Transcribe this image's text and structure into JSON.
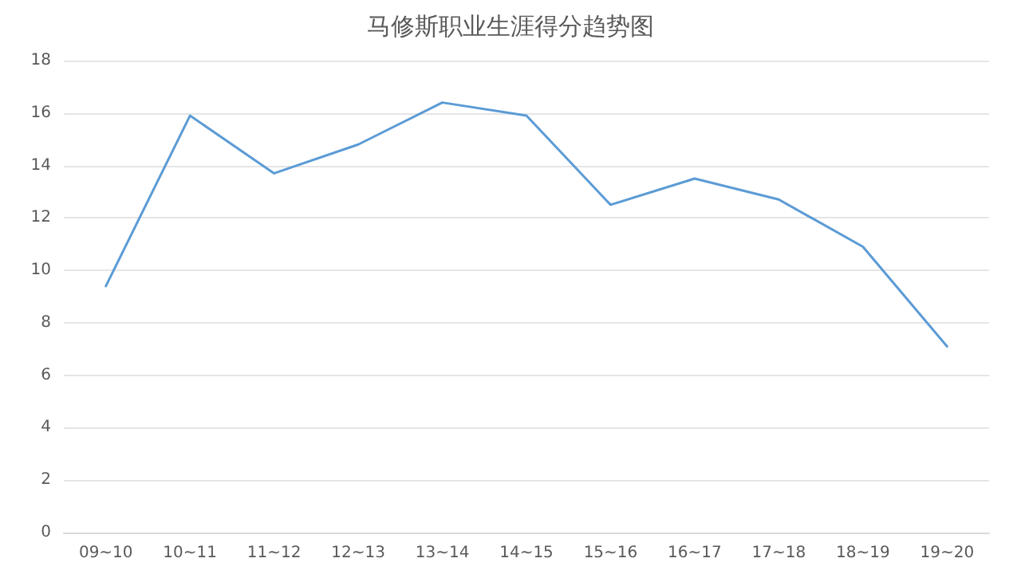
{
  "chart_data": {
    "type": "line",
    "title": "马修斯职业生涯得分趋势图",
    "categories": [
      "09~10",
      "10~11",
      "11~12",
      "12~13",
      "13~14",
      "14~15",
      "15~16",
      "16~17",
      "17~18",
      "18~19",
      "19~20"
    ],
    "series": [
      {
        "color": "#5b9bd5",
        "values": [
          9.4,
          15.9,
          13.7,
          14.8,
          16.4,
          15.9,
          12.5,
          13.5,
          12.7,
          10.9,
          7.1
        ]
      }
    ],
    "ylim": [
      0,
      18
    ],
    "yticks": [
      0,
      2,
      4,
      6,
      8,
      10,
      12,
      14,
      16,
      18
    ],
    "grid": "y",
    "marker": "none",
    "line_style": "solid"
  }
}
